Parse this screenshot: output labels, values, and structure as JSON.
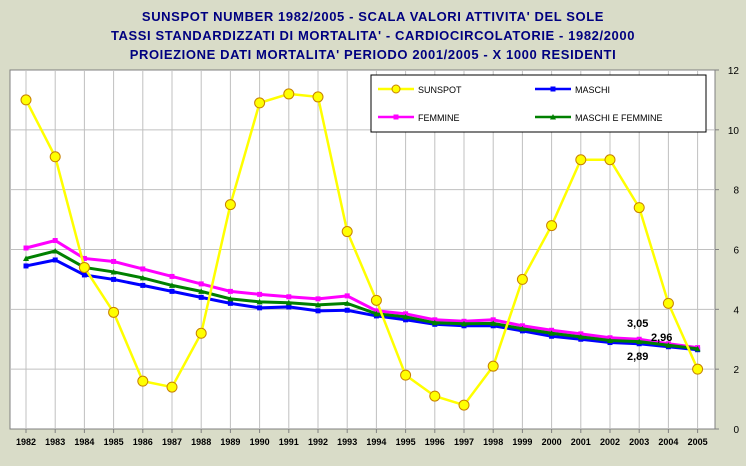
{
  "chart_data": {
    "type": "line",
    "title": [
      "SUNSPOT NUMBER 1982/2005 - SCALA VALORI ATTIVITA' DEL SOLE",
      "TASSI STANDARDIZZATI DI MORTALITA' - CARDIOCIRCOLATORIE - 1982/2000",
      "PROIEZIONE DATI MORTALITA' PERIODO 2001/2005 - X 1000 RESIDENTI"
    ],
    "x": [
      "1982",
      "1983",
      "1984",
      "1985",
      "1986",
      "1987",
      "1988",
      "1989",
      "1990",
      "1991",
      "1992",
      "1993",
      "1994",
      "1995",
      "1996",
      "1997",
      "1998",
      "1999",
      "2000",
      "2001",
      "2002",
      "2003",
      "2004",
      "2005"
    ],
    "ylim": [
      0,
      12
    ],
    "yticks": [
      "0",
      "2",
      "4",
      "6",
      "8",
      "10",
      "12"
    ],
    "grid": true,
    "legend_position": "top-right",
    "series": [
      {
        "name": "SUNSPOT",
        "color": "#ffff00",
        "marker": "circle",
        "values": [
          11.0,
          9.1,
          5.4,
          3.9,
          1.6,
          1.4,
          3.2,
          7.5,
          10.9,
          11.2,
          11.1,
          6.6,
          4.3,
          1.8,
          1.1,
          0.8,
          2.1,
          5.0,
          6.8,
          9.0,
          9.0,
          7.4,
          4.2,
          2.0
        ]
      },
      {
        "name": "MASCHI",
        "color": "#0000ff",
        "marker": "square",
        "values": [
          5.45,
          5.65,
          5.15,
          5.0,
          4.8,
          4.6,
          4.4,
          4.2,
          4.05,
          4.08,
          3.95,
          3.97,
          3.78,
          3.65,
          3.5,
          3.45,
          3.45,
          3.28,
          3.1,
          3.0,
          2.89,
          2.85,
          2.75,
          2.65
        ]
      },
      {
        "name": "FEMMINE",
        "color": "#ff00ff",
        "marker": "square",
        "values": [
          6.05,
          6.3,
          5.7,
          5.6,
          5.35,
          5.1,
          4.85,
          4.6,
          4.5,
          4.42,
          4.35,
          4.45,
          3.95,
          3.85,
          3.65,
          3.6,
          3.65,
          3.45,
          3.3,
          3.18,
          3.05,
          3.0,
          2.85,
          2.72
        ]
      },
      {
        "name": "MASCHI E FEMMINE",
        "color": "#008000",
        "marker": "triangle",
        "values": [
          5.7,
          5.95,
          5.4,
          5.25,
          5.05,
          4.8,
          4.6,
          4.35,
          4.25,
          4.22,
          4.15,
          4.2,
          3.85,
          3.75,
          3.55,
          3.52,
          3.53,
          3.35,
          3.2,
          3.08,
          2.96,
          2.92,
          2.8,
          2.68
        ]
      }
    ],
    "annotations": [
      {
        "text": "3,05",
        "x": "2002",
        "y": 3.05
      },
      {
        "text": "2,96",
        "x": "2002",
        "y": 2.96
      },
      {
        "text": "2,89",
        "x": "2002",
        "y": 2.89
      }
    ]
  }
}
